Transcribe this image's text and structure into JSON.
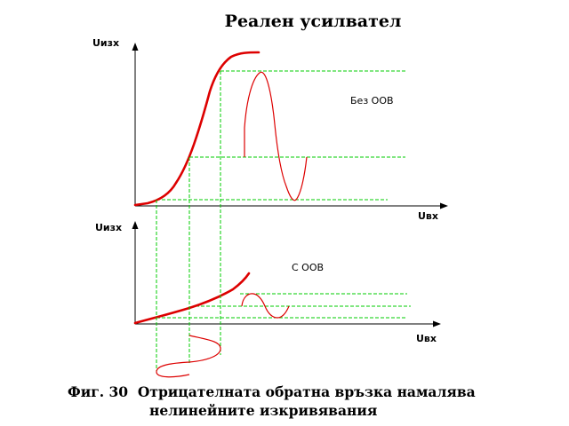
{
  "title": "Реален усилвател",
  "top_plot": {
    "y_axis_label": "Uизх",
    "x_axis_label": "Uвх",
    "note": "Без ООВ"
  },
  "bottom_plot": {
    "y_axis_label": "Uизх",
    "x_axis_label": "Uвх",
    "note": "С ООВ"
  },
  "caption": {
    "line1": "Фиг. 30  Отрицателната обратна връзка намалява",
    "line2": "нелинейните изкривявания"
  },
  "colors": {
    "axes": "#000000",
    "curve": "#dd0000",
    "guide": "#00cc00",
    "text": "#000000"
  }
}
